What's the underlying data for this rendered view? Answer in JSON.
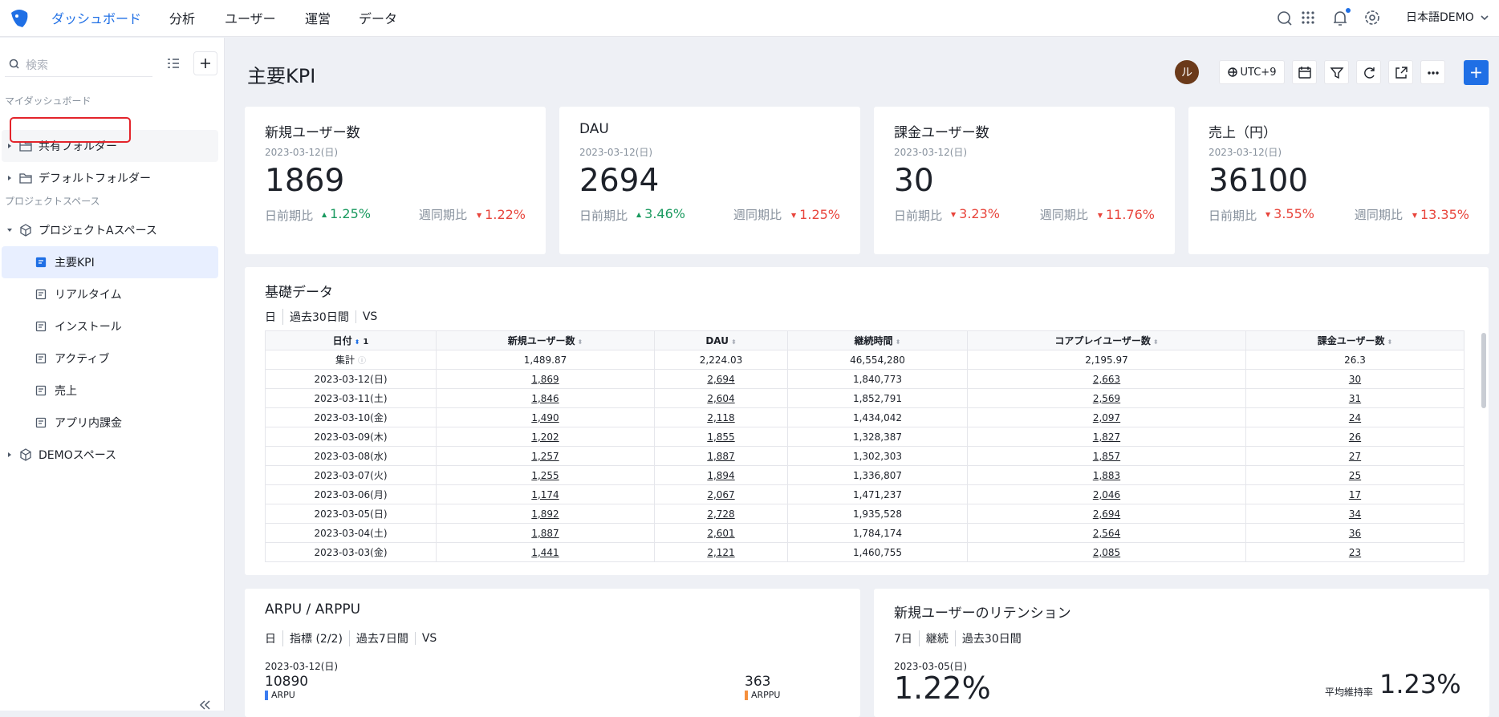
{
  "nav": {
    "items": [
      "ダッシュボード",
      "分析",
      "ユーザー",
      "運営",
      "データ"
    ],
    "active": 0,
    "language": "日本語DEMO"
  },
  "sidebar": {
    "search_placeholder": "検索",
    "my_section": "マイダッシュボード",
    "folders": [
      "共有フォルダー",
      "デフォルトフォルダー"
    ],
    "project_section": "プロジェクトスペース",
    "spaces": [
      {
        "name": "プロジェクトAスペース",
        "children": [
          "主要KPI",
          "リアルタイム",
          "インストール",
          "アクティブ",
          "売上",
          "アプリ内課金"
        ],
        "active_child": 0
      },
      {
        "name": "DEMOスペース"
      }
    ]
  },
  "header": {
    "title": "主要KPI",
    "avatar": "ル",
    "timezone": "UTC+9"
  },
  "kpis": [
    {
      "title": "新規ユーザー数",
      "date": "2023-03-12(日)",
      "value": "1869",
      "day_label": "日前期比",
      "day_change": "1.25%",
      "day_trend": "up",
      "week_label": "週同期比",
      "week_change": "1.22%",
      "week_trend": "down"
    },
    {
      "title": "DAU",
      "date": "2023-03-12(日)",
      "value": "2694",
      "day_label": "日前期比",
      "day_change": "3.46%",
      "day_trend": "up",
      "week_label": "週同期比",
      "week_change": "1.25%",
      "week_trend": "down"
    },
    {
      "title": "課金ユーザー数",
      "date": "2023-03-12(日)",
      "value": "30",
      "day_label": "日前期比",
      "day_change": "3.23%",
      "day_trend": "down",
      "week_label": "週同期比",
      "week_change": "11.76%",
      "week_trend": "down"
    },
    {
      "title": "売上（円）",
      "date": "2023-03-12(日)",
      "value": "36100",
      "day_label": "日前期比",
      "day_change": "3.55%",
      "day_trend": "down",
      "week_label": "週同期比",
      "week_change": "13.35%",
      "week_trend": "down"
    }
  ],
  "table": {
    "title": "基礎データ",
    "filters": [
      "日",
      "過去30日間",
      "VS"
    ],
    "sort_index": "1",
    "columns": [
      "日付",
      "新規ユーザー数",
      "DAU",
      "継続時間",
      "コアプレイユーザー数",
      "課金ユーザー数"
    ],
    "summary": [
      "集計",
      "1,489.87",
      "2,224.03",
      "46,554,280",
      "2,195.97",
      "26.3"
    ],
    "rows": [
      [
        "2023-03-12(日)",
        "1,869",
        "2,694",
        "1,840,773",
        "2,663",
        "30"
      ],
      [
        "2023-03-11(土)",
        "1,846",
        "2,604",
        "1,852,791",
        "2,569",
        "31"
      ],
      [
        "2023-03-10(金)",
        "1,490",
        "2,118",
        "1,434,042",
        "2,097",
        "24"
      ],
      [
        "2023-03-09(木)",
        "1,202",
        "1,855",
        "1,328,387",
        "1,827",
        "26"
      ],
      [
        "2023-03-08(水)",
        "1,257",
        "1,887",
        "1,302,303",
        "1,857",
        "27"
      ],
      [
        "2023-03-07(火)",
        "1,255",
        "1,894",
        "1,336,807",
        "1,883",
        "25"
      ],
      [
        "2023-03-06(月)",
        "1,174",
        "2,067",
        "1,471,237",
        "2,046",
        "17"
      ],
      [
        "2023-03-05(日)",
        "1,892",
        "2,728",
        "1,935,528",
        "2,694",
        "34"
      ],
      [
        "2023-03-04(土)",
        "1,887",
        "2,601",
        "1,784,174",
        "2,564",
        "36"
      ],
      [
        "2023-03-03(金)",
        "1,441",
        "2,121",
        "1,460,755",
        "2,085",
        "23"
      ]
    ]
  },
  "arpu": {
    "title": "ARPU / ARPPU",
    "filters": [
      "日",
      "指標 (2/2)",
      "過去7日間",
      "VS"
    ],
    "date": "2023-03-12(日)",
    "metrics": [
      {
        "value": "10890",
        "label": "ARPU",
        "color": "#3b7cf0"
      },
      {
        "value": "363",
        "label": "ARPPU",
        "color": "#f5903d"
      }
    ]
  },
  "retention": {
    "title": "新規ユーザーのリテンション",
    "filters": [
      "7日",
      "継続",
      "過去30日間"
    ],
    "date": "2023-03-05(日)",
    "value": "1.22%",
    "avg_label": "平均維持率",
    "avg_value": "1.23%"
  }
}
